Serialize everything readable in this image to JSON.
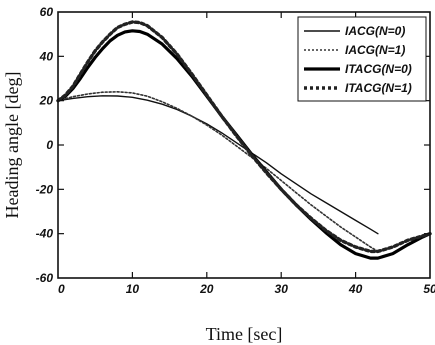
{
  "chart_data": {
    "type": "line",
    "title": "",
    "xlabel": "Time [sec]",
    "ylabel": "Heading angle [deg]",
    "xlim": [
      0,
      50
    ],
    "ylim": [
      -60,
      60
    ],
    "x_ticks": [
      "0",
      "10",
      "20",
      "30",
      "40",
      "50"
    ],
    "y_ticks": [
      "60",
      "40",
      "20",
      "0",
      "-20",
      "-40",
      "-60"
    ],
    "grid": false,
    "legend_position": "top-right",
    "series": [
      {
        "name": "IACG(N=0)",
        "style": "solid-thin",
        "color": "#111111",
        "points": [
          [
            0,
            20
          ],
          [
            2,
            21
          ],
          [
            4,
            21.8
          ],
          [
            6,
            22.2
          ],
          [
            8,
            22.1
          ],
          [
            10,
            21.5
          ],
          [
            12,
            20.2
          ],
          [
            14,
            18.4
          ],
          [
            16,
            16
          ],
          [
            18,
            13
          ],
          [
            20,
            9.5
          ],
          [
            22,
            5.5
          ],
          [
            24,
            1
          ],
          [
            26,
            -3.5
          ],
          [
            28,
            -8
          ],
          [
            30,
            -13
          ],
          [
            32,
            -17.5
          ],
          [
            34,
            -22
          ],
          [
            36,
            -26
          ],
          [
            38,
            -30
          ],
          [
            40,
            -34
          ],
          [
            42,
            -38
          ],
          [
            43,
            -40
          ]
        ]
      },
      {
        "name": "IACG(N=1)",
        "style": "dotted-thin",
        "color": "#333333",
        "points": [
          [
            0,
            20
          ],
          [
            2,
            21.8
          ],
          [
            4,
            23
          ],
          [
            6,
            23.8
          ],
          [
            8,
            24
          ],
          [
            10,
            23.5
          ],
          [
            12,
            22
          ],
          [
            14,
            19.5
          ],
          [
            16,
            16.5
          ],
          [
            18,
            13
          ],
          [
            20,
            9
          ],
          [
            22,
            4.5
          ],
          [
            24,
            -0.5
          ],
          [
            26,
            -5.5
          ],
          [
            28,
            -10.5
          ],
          [
            30,
            -16
          ],
          [
            32,
            -21.5
          ],
          [
            34,
            -27
          ],
          [
            36,
            -32
          ],
          [
            38,
            -37
          ],
          [
            40,
            -41.5
          ],
          [
            42,
            -46
          ],
          [
            43,
            -48
          ]
        ]
      },
      {
        "name": "ITACG(N=0)",
        "style": "solid-thick",
        "color": "#000000",
        "points": [
          [
            0,
            20
          ],
          [
            1,
            22
          ],
          [
            2,
            25.5
          ],
          [
            3,
            30
          ],
          [
            4,
            35
          ],
          [
            5,
            39.5
          ],
          [
            6,
            43.5
          ],
          [
            7,
            47
          ],
          [
            8,
            49.5
          ],
          [
            9,
            51
          ],
          [
            10,
            51.5
          ],
          [
            11,
            51.2
          ],
          [
            12,
            50
          ],
          [
            14,
            45.5
          ],
          [
            16,
            39
          ],
          [
            18,
            31
          ],
          [
            20,
            22
          ],
          [
            22,
            13
          ],
          [
            24,
            4.5
          ],
          [
            26,
            -4
          ],
          [
            28,
            -12
          ],
          [
            30,
            -20
          ],
          [
            32,
            -27
          ],
          [
            34,
            -33.5
          ],
          [
            36,
            -39.5
          ],
          [
            38,
            -45
          ],
          [
            40,
            -49
          ],
          [
            42,
            -51
          ],
          [
            43,
            -51
          ],
          [
            45,
            -49
          ],
          [
            47,
            -45
          ],
          [
            49,
            -41.5
          ],
          [
            50,
            -40
          ]
        ]
      },
      {
        "name": "ITACG(N=1)",
        "style": "dotted-thick",
        "color": "#222222",
        "points": [
          [
            0,
            20
          ],
          [
            1,
            22.5
          ],
          [
            2,
            26.5
          ],
          [
            3,
            32
          ],
          [
            4,
            37.5
          ],
          [
            5,
            42.5
          ],
          [
            6,
            46.5
          ],
          [
            7,
            50
          ],
          [
            8,
            53
          ],
          [
            9,
            54.5
          ],
          [
            10,
            55.5
          ],
          [
            11,
            55.2
          ],
          [
            12,
            53.8
          ],
          [
            14,
            48.5
          ],
          [
            16,
            41
          ],
          [
            18,
            32
          ],
          [
            20,
            22.5
          ],
          [
            22,
            13
          ],
          [
            24,
            4
          ],
          [
            26,
            -4.5
          ],
          [
            28,
            -12.5
          ],
          [
            30,
            -20
          ],
          [
            32,
            -27
          ],
          [
            34,
            -33
          ],
          [
            36,
            -38.5
          ],
          [
            38,
            -43
          ],
          [
            40,
            -46
          ],
          [
            42,
            -48
          ],
          [
            43,
            -48
          ],
          [
            45,
            -46
          ],
          [
            47,
            -43
          ],
          [
            49,
            -41
          ],
          [
            50,
            -40
          ]
        ]
      }
    ]
  }
}
